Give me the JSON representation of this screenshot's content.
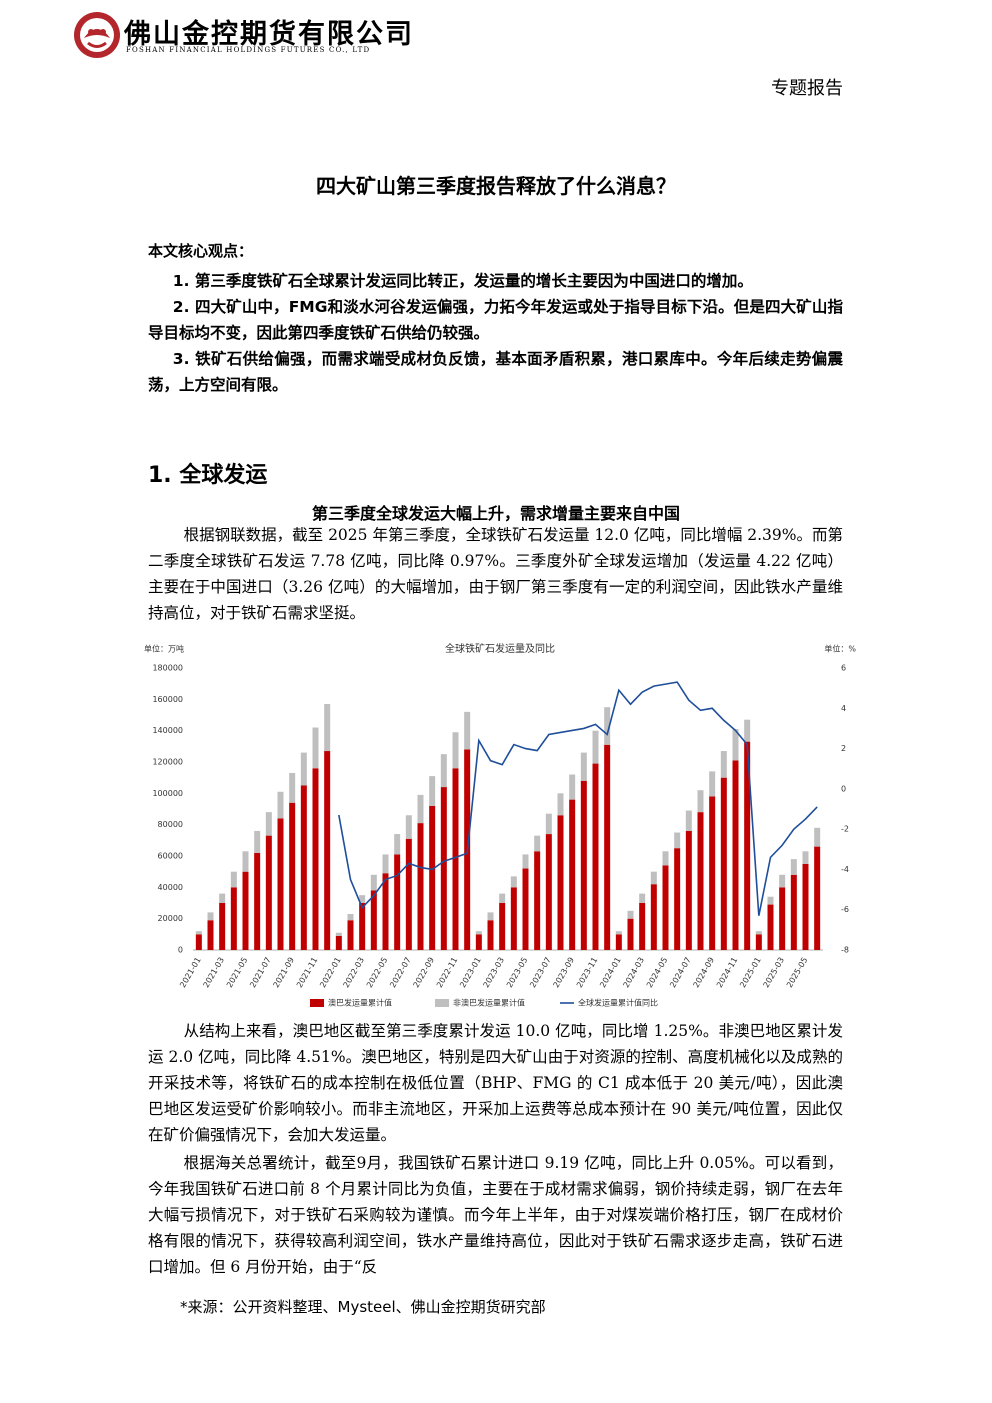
{
  "header": {
    "company": "佛山金控期货有限公司",
    "company_en": "FOSHAN FINANCIAL HOLDINGS FUTURES CO., LTD",
    "report_type": "专题报告"
  },
  "title": "四大矿山第三季度报告释放了什么消息？",
  "summary": {
    "heading": "本文核心观点：",
    "points": [
      "1. 第三季度铁矿石全球累计发运同比转正，发运量的增长主要因为中国进口的增加。",
      "2. 四大矿山中，FMG和淡水河谷发运偏强，力拓今年发运或处于指导目标下沿。但是四大矿山指导目标均不变，因此第四季度铁矿石供给仍较强。",
      "3. 铁矿石供给偏强，而需求端受成材负反馈，基本面矛盾积累，港口累库中。今年后续走势偏震荡，上方空间有限。"
    ]
  },
  "section": {
    "heading": "1. 全球发运",
    "subheading": "第三季度全球发运大幅上升，需求增量主要来自中国",
    "paragraphs": [
      "根据钢联数据，截至 2025 年第三季度，全球铁矿石发运量 12.0 亿吨，同比增幅 2.39%。而第二季度全球铁矿石发运 7.78 亿吨，同比降 0.97%。三季度外矿全球发运增加（发运量 4.22 亿吨）主要在于中国进口（3.26 亿吨）的大幅增加，由于钢厂第三季度有一定的利润空间，因此铁水产量维持高位，对于铁矿石需求坚挺。",
      "从结构上来看，澳巴地区截至第三季度累计发运 10.0 亿吨，同比增 1.25%。非澳巴地区累计发运 2.0 亿吨，同比降 4.51%。澳巴地区，特别是四大矿山由于对资源的控制、高度机械化以及成熟的开采技术等，将铁矿石的成本控制在极低位置（BHP、FMG 的 C1 成本低于 20 美元/吨），因此澳巴地区发运受矿价影响较小。而非主流地区，开采加上运费等总成本预计在 90 美元/吨位置，因此仅在矿价偏强情况下，会加大发运量。",
      "根据海关总署统计，截至9月，我国铁矿石累计进口 9.19 亿吨，同比上升 0.05%。可以看到，今年我国铁矿石进口前 8 个月累计同比为负值，主要在于成材需求偏弱，钢价持续走弱，钢厂在去年大幅亏损情况下，对于铁矿石采购较为谨慎。而今年上半年，由于对煤炭端价格打压，钢厂在成材价格有限的情况下，获得较高利润空间，铁水产量维持高位，因此对于铁矿石需求逐步走高，铁矿石进口增加。但 6 月份开始，由于“反"
    ]
  },
  "chart_data": {
    "type": "bar-line",
    "title": "全球铁矿石发运量及同比",
    "ylabel": "单位：万吨",
    "y2label": "单位：%",
    "categories": [
      "2021-01",
      null,
      "2021-03",
      null,
      "2021-05",
      null,
      "2021-07",
      null,
      "2021-09",
      null,
      "2021-11",
      null,
      "2022-01",
      null,
      "2022-03",
      null,
      "2022-05",
      null,
      "2022-07",
      null,
      "2022-09",
      null,
      "2022-11",
      null,
      "2023-01",
      null,
      "2023-03",
      null,
      "2023-05",
      null,
      "2023-07",
      null,
      "2023-09",
      null,
      "2023-11",
      null,
      "2024-01",
      null,
      "2024-03",
      null,
      "2024-05",
      null,
      "2024-07",
      null,
      "2024-09",
      null,
      "2024-11",
      null,
      "2025-01",
      null,
      "2025-03",
      null,
      "2025-05",
      null
    ],
    "series": [
      {
        "name": "澳巴发运量累计值",
        "color": "#c00000",
        "values": [
          10000,
          19000,
          30000,
          40000,
          50000,
          62000,
          73000,
          84000,
          94000,
          105000,
          116000,
          127000,
          9000,
          19000,
          30000,
          38000,
          49000,
          61000,
          71000,
          81000,
          92000,
          104000,
          116000,
          128000,
          10000,
          19000,
          30000,
          40000,
          52000,
          63000,
          74000,
          86000,
          96000,
          108000,
          119000,
          131000,
          10000,
          20000,
          30000,
          42000,
          54000,
          65000,
          76000,
          88000,
          98000,
          110000,
          121000,
          133000,
          10000,
          29000,
          40000,
          48000,
          55000,
          66000
        ]
      },
      {
        "name": "非澳巴发运量累计值",
        "color": "#bfbfbf",
        "values": [
          2000,
          5000,
          6000,
          10000,
          13000,
          14000,
          15000,
          17000,
          19000,
          21000,
          26000,
          30000,
          2000,
          4000,
          5000,
          10000,
          12000,
          13000,
          15000,
          18000,
          19000,
          21000,
          23000,
          24000,
          2000,
          5000,
          6000,
          7000,
          9000,
          10000,
          13000,
          14000,
          16000,
          18000,
          21000,
          24000,
          2000,
          5000,
          6000,
          8000,
          9000,
          10000,
          13000,
          14000,
          16000,
          17000,
          20000,
          14000,
          2000,
          5000,
          8000,
          10000,
          8000,
          12000
        ]
      },
      {
        "name": "全球发运量累计值同比",
        "color": "#1f4e9a",
        "axis": "y2",
        "values": [
          null,
          null,
          null,
          null,
          null,
          null,
          null,
          null,
          null,
          null,
          null,
          null,
          -1.3,
          -4.5,
          -5.9,
          -5.3,
          -4.5,
          -4.3,
          -3.7,
          -3.9,
          -4.0,
          -3.6,
          -3.4,
          -3.2,
          2.4,
          1.4,
          1.2,
          2.2,
          2.0,
          1.9,
          2.7,
          2.8,
          2.9,
          3.0,
          3.2,
          2.7,
          4.9,
          4.2,
          4.8,
          5.1,
          5.2,
          5.3,
          4.4,
          3.9,
          4.0,
          3.4,
          2.9,
          2.2,
          -6.3,
          -3.4,
          -2.8,
          -2.0,
          -1.5,
          -0.9
        ]
      }
    ],
    "ylim": [
      0,
      180000
    ],
    "yticks": [
      0,
      20000,
      40000,
      60000,
      80000,
      100000,
      120000,
      140000,
      160000,
      180000
    ],
    "y2lim": [
      -8,
      6
    ],
    "y2ticks": [
      -8,
      -6,
      -4,
      -2,
      0,
      2,
      4,
      6
    ],
    "legend": "bottom",
    "grid": false
  },
  "footnote": "*来源：公开资料整理、Mysteel、佛山金控期货研究部"
}
